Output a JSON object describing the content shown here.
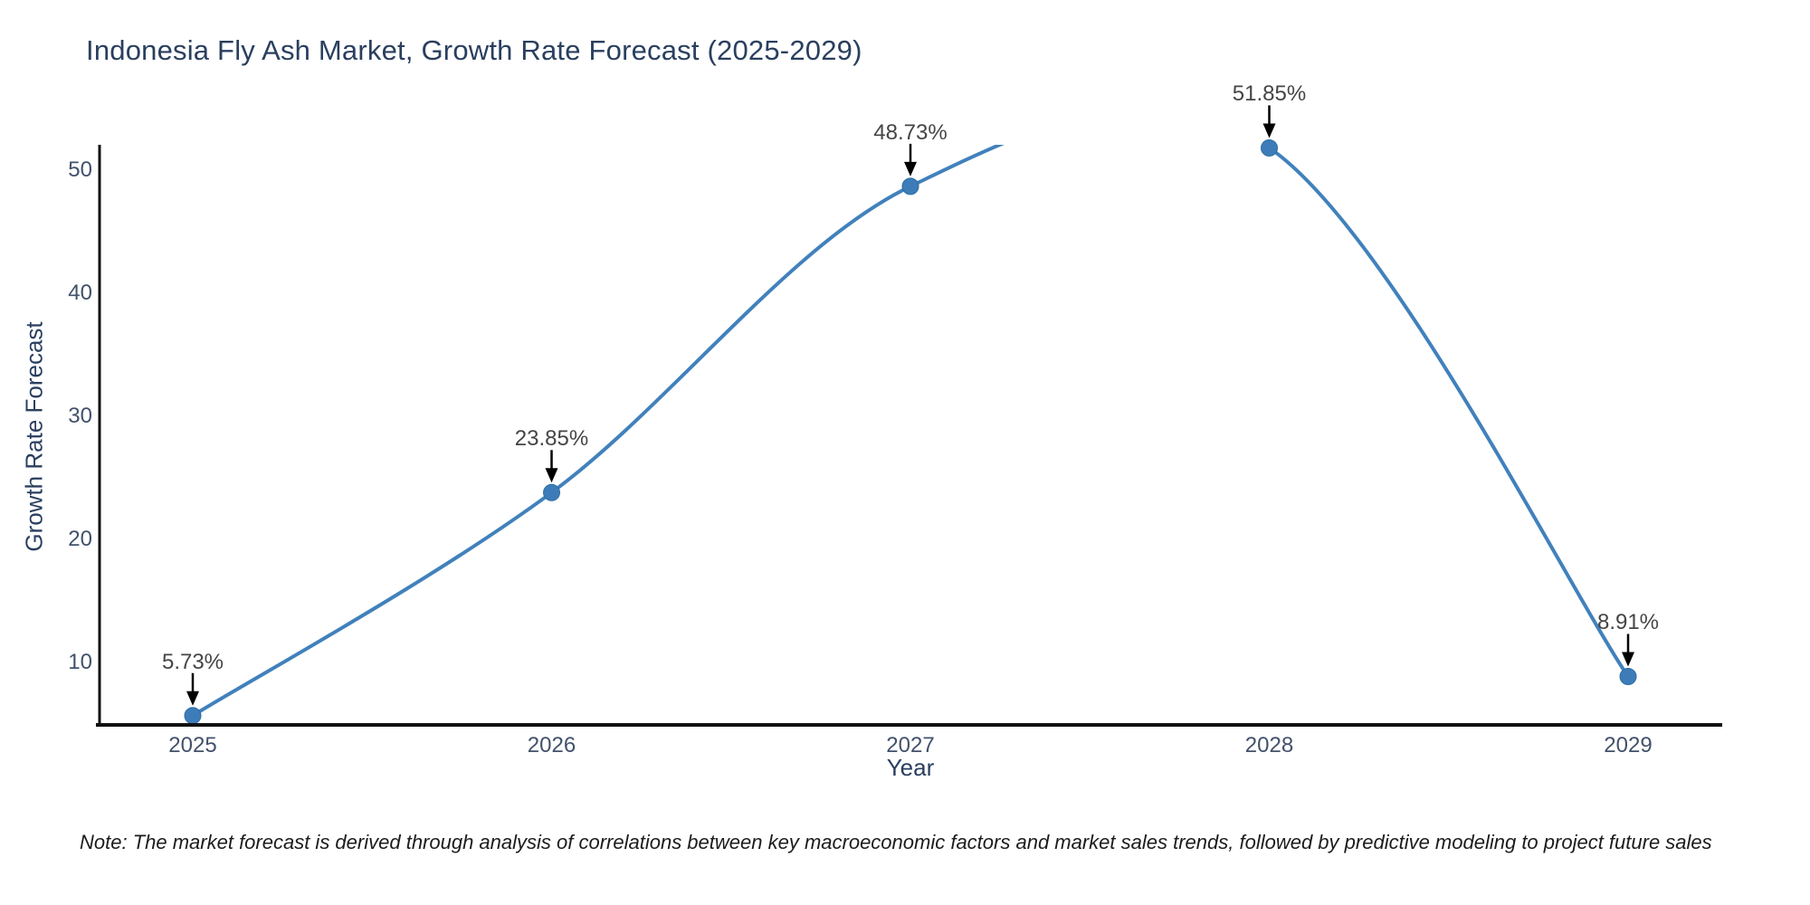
{
  "title": "Indonesia Fly Ash Market, Growth Rate Forecast (2025-2029)",
  "note": "Note: The market forecast is derived through analysis of correlations between key macroeconomic factors and market sales trends, followed by predictive modeling to project future sales",
  "chart_data": {
    "type": "line",
    "line_shape": "spline",
    "title": "Indonesia Fly Ash Market, Growth Rate Forecast (2025-2029)",
    "xlabel": "Year",
    "ylabel": "Growth Rate Forecast",
    "categories": [
      "2025",
      "2026",
      "2027",
      "2028",
      "2029"
    ],
    "values": [
      5.73,
      23.85,
      48.73,
      51.85,
      8.91
    ],
    "point_labels": [
      "5.73%",
      "23.85%",
      "48.73%",
      "51.85%",
      "8.91%"
    ],
    "yticks": [
      10,
      20,
      30,
      40,
      50
    ],
    "ylim": [
      5.05,
      52.25
    ],
    "grid": false,
    "legend": "none",
    "colors": {
      "line": "#4181bc",
      "marker": "#3d7cb8",
      "marker_edge": "#2d6da3",
      "axis_line": "#111111",
      "title_text": "#2a3f5f",
      "tick_text": "#42516b",
      "annotation_text": "#454545",
      "annotation_arrow": "#000000",
      "background": "#ffffff"
    }
  }
}
